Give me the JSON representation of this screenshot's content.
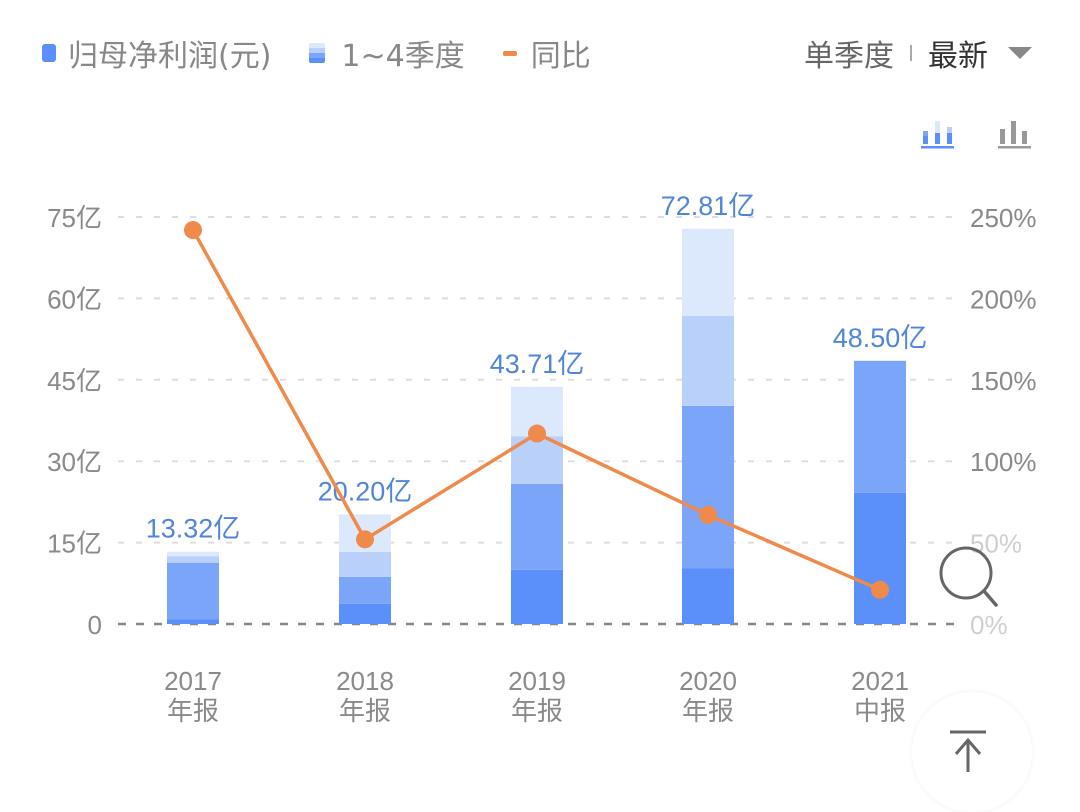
{
  "legend": {
    "items": [
      {
        "label": "归母净利润(元)",
        "color": "#5b8ff9"
      },
      {
        "label": "1~4季度",
        "colors": [
          "#dce8fb",
          "#b9d0fb",
          "#7ba5f8",
          "#5b8ff9"
        ]
      },
      {
        "label": "同比",
        "color": "#f08a4b"
      }
    ]
  },
  "controls": {
    "period_label": "单季度",
    "latest_label": "最新",
    "view_stacked_icon": "stacked-bar-chart-icon",
    "view_simple_icon": "bar-chart-icon"
  },
  "colors": {
    "q1": "#5b8ff9",
    "q2": "#7ba5f8",
    "q3": "#b9d0fb",
    "q4": "#dce8fb",
    "line": "#f08a4b",
    "value_label": "#4f86d9",
    "axis_text": "#8a8a8a"
  },
  "chart_data": {
    "type": "bar",
    "subtype": "stacked bar + line (dual axis)",
    "categories": [
      "2017\n年报",
      "2018\n年报",
      "2019\n年报",
      "2020\n年报",
      "2021\n中报"
    ],
    "category_years": [
      "2017",
      "2018",
      "2019",
      "2020",
      "2021"
    ],
    "category_types": [
      "年报",
      "年报",
      "年报",
      "年报",
      "中报"
    ],
    "series": [
      {
        "name": "Q1",
        "axis": "left",
        "values": [
          0.9,
          3.7,
          10.0,
          10.3,
          24.2
        ]
      },
      {
        "name": "Q2",
        "axis": "left",
        "values": [
          10.4,
          5.0,
          15.8,
          29.9,
          24.3
        ]
      },
      {
        "name": "Q3",
        "axis": "left",
        "values": [
          1.2,
          4.6,
          8.8,
          16.6,
          0
        ]
      },
      {
        "name": "Q4",
        "axis": "left",
        "values": [
          0.82,
          6.9,
          9.11,
          16.01,
          0
        ]
      },
      {
        "name": "同比",
        "axis": "right",
        "type": "line",
        "values": [
          242,
          52,
          117,
          67,
          21
        ]
      }
    ],
    "totals": [
      13.32,
      20.2,
      43.71,
      72.81,
      48.5
    ],
    "total_labels": [
      "13.32亿",
      "20.20亿",
      "43.71亿",
      "72.81亿",
      "48.50亿"
    ],
    "title": "",
    "legend": [
      "归母净利润(元)",
      "1~4季度",
      "同比"
    ],
    "legend_position": "top",
    "xlabel": "",
    "ylabel": "归母净利润(元)",
    "ylabel_right": "同比",
    "ylim": [
      0,
      75
    ],
    "ylim_right": [
      0,
      250
    ],
    "yticks": [
      "0",
      "15亿",
      "30亿",
      "45亿",
      "60亿",
      "75亿"
    ],
    "yticks_right": [
      "0%",
      "50%",
      "100%",
      "150%",
      "200%",
      "250%"
    ],
    "grid": true
  },
  "fab": {
    "icon": "back-to-top-icon"
  },
  "zoom_icon": "magnifier-icon"
}
